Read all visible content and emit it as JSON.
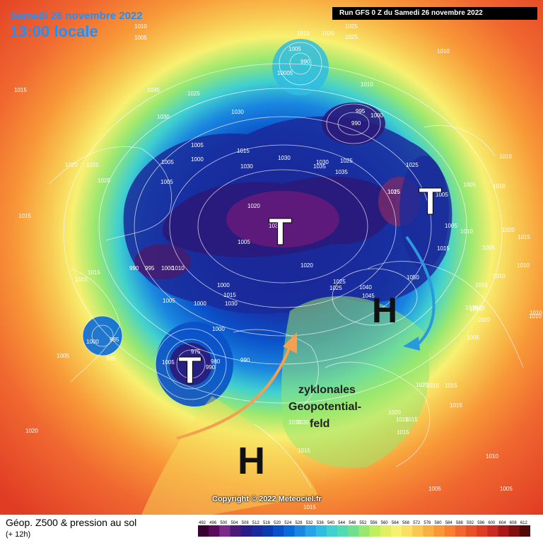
{
  "header": {
    "date": "Samedi 26 novembre 2022",
    "time": "13:00 locale",
    "run": "Run GFS 0 Z du Samedi 26 novembre 2022"
  },
  "footer": {
    "title": "Géop. Z500 & pression au sol",
    "subtitle": "(+ 12h)",
    "copyright": "Copyright © 2022 Meteociel.fr"
  },
  "scale": {
    "labels": [
      "492",
      "496",
      "500",
      "504",
      "508",
      "512",
      "516",
      "520",
      "524",
      "528",
      "532",
      "536",
      "540",
      "544",
      "548",
      "552",
      "556",
      "560",
      "564",
      "568",
      "572",
      "576",
      "580",
      "584",
      "588",
      "592",
      "596",
      "600",
      "604",
      "608",
      "612"
    ],
    "colors": [
      "#3a0030",
      "#5a0a5a",
      "#7a2a8a",
      "#4a1a7a",
      "#2a1a8a",
      "#1a2a9a",
      "#0a3ab0",
      "#0a50c8",
      "#0a6ad8",
      "#1a86e0",
      "#28a2e8",
      "#30bce0",
      "#40d0d0",
      "#50dcb0",
      "#70e090",
      "#98e870",
      "#c0ee60",
      "#e0f060",
      "#f8f070",
      "#f8e060",
      "#f8c850",
      "#f8b040",
      "#f89838",
      "#f88030",
      "#f06830",
      "#e85028",
      "#e03c24",
      "#c82a20",
      "#a81818",
      "#801010",
      "#500808"
    ]
  },
  "annotations": {
    "lows": [
      "T",
      "T",
      "T"
    ],
    "highs": [
      "H",
      "H"
    ],
    "text": [
      "zyklonales",
      "Geopotential-",
      "feld"
    ]
  },
  "isobars": [
    {
      "text": "1010"
    },
    {
      "text": "1005"
    },
    {
      "text": "1010"
    },
    {
      "text": "1020"
    },
    {
      "text": "1025"
    },
    {
      "text": "1025"
    },
    {
      "text": "1005"
    },
    {
      "text": "990"
    },
    {
      "text": "10005"
    },
    {
      "text": "1010"
    },
    {
      "text": "1010"
    },
    {
      "text": "1015"
    },
    {
      "text": "1035"
    },
    {
      "text": "1025"
    },
    {
      "text": "1030"
    },
    {
      "text": "1030"
    },
    {
      "text": "995"
    },
    {
      "text": "1000"
    },
    {
      "text": "990"
    },
    {
      "text": "1005"
    },
    {
      "text": "1000"
    },
    {
      "text": "1020"
    },
    {
      "text": "1025"
    },
    {
      "text": "1005"
    },
    {
      "text": "1015"
    },
    {
      "text": "1030"
    },
    {
      "text": "1025"
    },
    {
      "text": "1035"
    },
    {
      "text": "1035"
    },
    {
      "text": "1025"
    },
    {
      "text": "1005"
    },
    {
      "text": "1010"
    },
    {
      "text": "1005"
    },
    {
      "text": "1025"
    },
    {
      "text": "1005"
    },
    {
      "text": "1015"
    },
    {
      "text": "1020"
    },
    {
      "text": "1010"
    },
    {
      "text": "1015"
    },
    {
      "text": "1005"
    },
    {
      "text": "1010"
    },
    {
      "text": "1005"
    },
    {
      "text": "1010"
    },
    {
      "text": "1010"
    },
    {
      "text": "1015"
    },
    {
      "text": "990"
    },
    {
      "text": "995"
    },
    {
      "text": "1000"
    },
    {
      "text": "1010"
    },
    {
      "text": "1020"
    },
    {
      "text": "1030"
    },
    {
      "text": "1050"
    },
    {
      "text": "1005"
    },
    {
      "text": "1020"
    },
    {
      "text": "1000"
    },
    {
      "text": "1015"
    },
    {
      "text": "1030"
    },
    {
      "text": "1025"
    },
    {
      "text": "1040"
    },
    {
      "text": "1045"
    },
    {
      "text": "1000"
    },
    {
      "text": "1005"
    },
    {
      "text": "1000"
    },
    {
      "text": "975"
    },
    {
      "text": "980"
    },
    {
      "text": "990"
    },
    {
      "text": "990"
    },
    {
      "text": "985"
    },
    {
      "text": "1000"
    },
    {
      "text": "985"
    },
    {
      "text": "1005"
    },
    {
      "text": "1005"
    },
    {
      "text": "1015"
    },
    {
      "text": "1030"
    },
    {
      "text": "1020"
    },
    {
      "text": "1015"
    },
    {
      "text": "1015"
    },
    {
      "text": "1010"
    },
    {
      "text": "1015"
    },
    {
      "text": "1005"
    },
    {
      "text": "1010"
    },
    {
      "text": "1005"
    },
    {
      "text": "1015"
    },
    {
      "text": "1015"
    },
    {
      "text": "1015"
    },
    {
      "text": "1010"
    },
    {
      "text": "1015"
    },
    {
      "text": "1015"
    },
    {
      "text": "1025"
    },
    {
      "text": "1015"
    },
    {
      "text": "1030"
    },
    {
      "text": "1020"
    },
    {
      "text": "1020"
    },
    {
      "text": "1020"
    },
    {
      "text": "1015"
    },
    {
      "text": "1025"
    },
    {
      "text": "1010"
    },
    {
      "text": "1015"
    },
    {
      "text": "1015"
    },
    {
      "text": "1015"
    },
    {
      "text": "1025"
    },
    {
      "text": "1030"
    },
    {
      "text": "1005"
    }
  ]
}
